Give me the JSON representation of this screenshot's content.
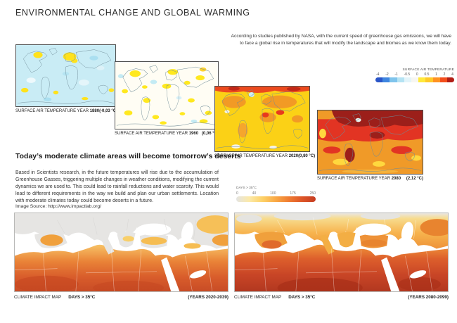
{
  "page": {
    "title": "ENVIRONMENTAL CHANGE AND GLOBAL WARMING",
    "intro": "According to studies published by NASA, with the current speed of greenhouse gas emissions, we will have to face a global rise in temperatures that will modify the landscape and biomes as we know them today."
  },
  "temperature_maps": [
    {
      "caption": "SURFACE AIR TEMPERATURE YEAR",
      "year": "1880",
      "anomaly": "(-0,03 °C)"
    },
    {
      "caption": "SURFACE AIR TEMPERATURE YEAR",
      "year": "1960",
      "anomaly": "(0,06 °C)"
    },
    {
      "caption": "SURFACE AIR TEMPERATURE YEAR",
      "year": "2020",
      "anomaly": "(0,80 °C)"
    },
    {
      "caption": "SURFACE AIR TEMPERATURE YEAR",
      "year": "2080",
      "anomaly": "(2,12 °C)"
    }
  ],
  "temp_legend": {
    "title": "SURFACE AIR TEMPERATURE",
    "ticks": [
      "-4",
      "-2",
      "-1",
      "-0.5",
      "0",
      "0.5",
      "1",
      "2",
      "4"
    ],
    "colors": [
      "#2a55c8",
      "#3f86e0",
      "#7fc4ec",
      "#b5e3f3",
      "#e2f4fa",
      "#f7f6f1",
      "#ffe93c",
      "#ffc928",
      "#ff9222",
      "#f34e1c",
      "#b11d15"
    ]
  },
  "section": {
    "heading": "Today’s moderate climate areas will become tomorrow’s deserts",
    "body": "Based in Scientists research, in the future temperatures will rise due to the accumulation of Greenhouse Gasses, triggering multiple changes in weather conditions, modifying the current dynamics we are used to. This could lead to rainfall reductions and water scarcity. This would lead to different requirements in the way we build and plan our urban settlements. Location with moderate climates today could become deserts in a future.",
    "source": "Image Source: http://www.impactlab.org/"
  },
  "days_legend": {
    "title": "DAYS > 35°C",
    "ticks": [
      "0",
      "40",
      "100",
      "175",
      "250"
    ],
    "colors": [
      "#e4e4e2",
      "#fce9a8",
      "#fdd167",
      "#f9a845",
      "#ef7b31",
      "#dd5527",
      "#c53d22"
    ]
  },
  "impact_maps": [
    {
      "label": "CLIMATE IMPACT MAP",
      "sublabel": "DAYS > 35°C",
      "years": "(YEARS 2020-2039)"
    },
    {
      "label": "CLIMATE IMPACT MAP",
      "sublabel": "DAYS > 35°C",
      "years": "(YEARS 2080-2099)"
    }
  ]
}
